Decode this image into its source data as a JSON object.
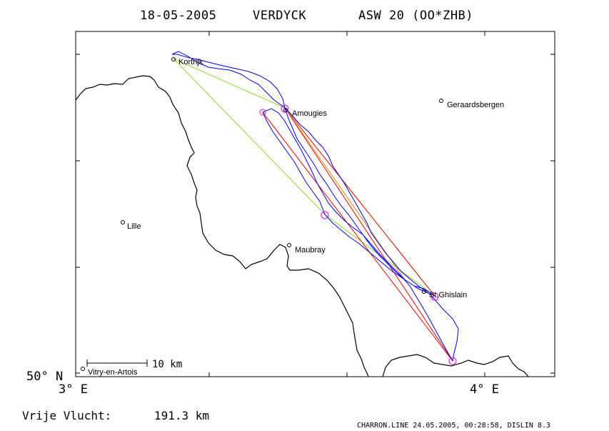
{
  "header": {
    "date": "18-05-2005",
    "pilot": "VERDYCK",
    "glider": "ASW 20 (OO*ZHB)"
  },
  "axes": {
    "lat_label": "50° N",
    "lon_left_label": "3° E",
    "lon_right_label": "4° E"
  },
  "scale_bar": {
    "label": "10 km"
  },
  "footer": {
    "distance_label": "Vrije Vlucht:",
    "distance_value": "191.3 km",
    "software": "CHARRON.LINE 24.05.2005, 00:28:58, DISLIN 8.3"
  },
  "places": [
    {
      "name": "Kortrijk"
    },
    {
      "name": "Amougies"
    },
    {
      "name": "Geraardsbergen"
    },
    {
      "name": "Lille"
    },
    {
      "name": "Maubray"
    },
    {
      "name": "St.Ghislain"
    },
    {
      "name": "Vitry-en-Artois"
    }
  ],
  "colors": {
    "track": "#0000ff",
    "leg_green": "#88dd22",
    "leg_red": "#ee0000",
    "turnpoint": "#ee00ee",
    "border": "#000000"
  }
}
